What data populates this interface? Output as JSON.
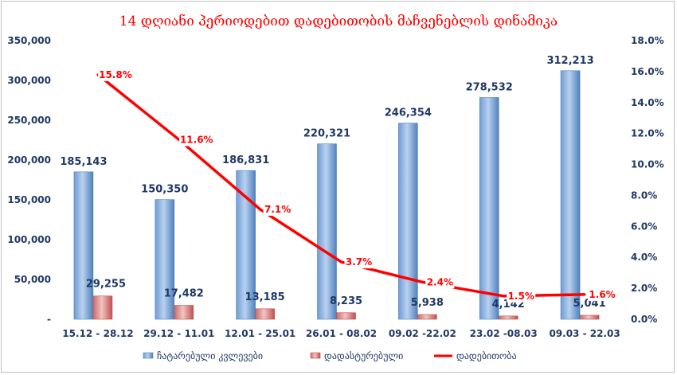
{
  "chart_data": {
    "type": "bar",
    "title": "14 დღიანი პერიოდებით დადებითობის მაჩვენებლის დინამიკა",
    "categories": [
      "15.12 - 28.12",
      "29.12 - 11.01",
      "12.01 - 25.01",
      "26.01 - 08.02",
      "09.02 -22.02",
      "23.02 -08.03",
      "09.03 - 22.03"
    ],
    "series": [
      {
        "name": "ჩატარებული კვლევები",
        "type": "bar",
        "axis": "left",
        "color": "#4f81bd",
        "values": [
          185143,
          150350,
          186831,
          220321,
          246354,
          278532,
          312213
        ],
        "labels": [
          "185,143",
          "150,350",
          "186,831",
          "220,321",
          "246,354",
          "278,532",
          "312,213"
        ]
      },
      {
        "name": "დადასტურებული",
        "type": "bar",
        "axis": "left",
        "color": "#c0504d",
        "values": [
          29255,
          17482,
          13185,
          8235,
          5938,
          4142,
          5041
        ],
        "labels": [
          "29,255",
          "17,482",
          "13,185",
          "8,235",
          "5,938",
          "4,142",
          "5,041"
        ]
      },
      {
        "name": "დადებითობა",
        "type": "line",
        "axis": "right",
        "color": "#ff0000",
        "values": [
          15.8,
          11.6,
          7.1,
          3.7,
          2.4,
          1.5,
          1.6
        ],
        "labels": [
          "15.8%",
          "11.6%",
          "7.1%",
          "3.7%",
          "2.4%",
          "1.5%",
          "1.6%"
        ]
      }
    ],
    "ylim": [
      0,
      350000
    ],
    "y2lim": [
      0,
      18
    ],
    "yticks": [
      "-",
      "50,000",
      "100,000",
      "150,000",
      "200,000",
      "250,000",
      "300,000",
      "350,000"
    ],
    "y2ticks": [
      "0.0%",
      "2.0%",
      "4.0%",
      "6.0%",
      "8.0%",
      "10.0%",
      "12.0%",
      "14.0%",
      "16.0%",
      "18.0%"
    ],
    "grid": false,
    "legend": "bottom"
  }
}
